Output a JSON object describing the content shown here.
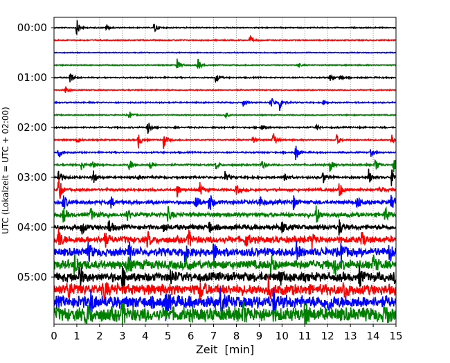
{
  "chart_data": {
    "type": "line",
    "subtype": "helicorder-seismogram",
    "xlabel": "Zeit  [min]",
    "ylabel": "UTC (Lokalzeit = UTC + 02:00)",
    "xlim": [
      0,
      15
    ],
    "xticks": [
      0,
      1,
      2,
      3,
      4,
      5,
      6,
      7,
      8,
      9,
      10,
      11,
      12,
      13,
      14,
      15
    ],
    "grid": "vertical dotted at each minute",
    "line_interval_min": 15,
    "yticks": [
      {
        "label": "00:00",
        "line": 0
      },
      {
        "label": "01:00",
        "line": 4
      },
      {
        "label": "02:00",
        "line": 8
      },
      {
        "label": "03:00",
        "line": 12
      },
      {
        "label": "04:00",
        "line": 16
      },
      {
        "label": "05:00",
        "line": 20
      }
    ],
    "colors": [
      "#000000",
      "#ff0000",
      "#0000ff",
      "#008000"
    ],
    "traces": [
      {
        "start": "00:00",
        "noise": 0.6,
        "events": [
          [
            1.0,
            12
          ],
          [
            2.3,
            6
          ],
          [
            4.4,
            9
          ]
        ]
      },
      {
        "start": "00:15",
        "noise": 0.6,
        "events": [
          [
            8.6,
            7
          ]
        ]
      },
      {
        "start": "00:30",
        "noise": 0.5,
        "events": []
      },
      {
        "start": "00:45",
        "noise": 0.6,
        "events": [
          [
            5.4,
            9
          ],
          [
            6.3,
            10
          ],
          [
            10.7,
            3
          ]
        ]
      },
      {
        "start": "01:00",
        "noise": 0.7,
        "events": [
          [
            0.7,
            10
          ],
          [
            7.1,
            8
          ],
          [
            12.1,
            5
          ],
          [
            12.5,
            6
          ]
        ]
      },
      {
        "start": "01:15",
        "noise": 0.6,
        "events": [
          [
            0.5,
            6
          ]
        ]
      },
      {
        "start": "01:30",
        "noise": 0.7,
        "events": [
          [
            8.3,
            6
          ],
          [
            9.5,
            10
          ],
          [
            9.9,
            12
          ],
          [
            11.8,
            4
          ]
        ]
      },
      {
        "start": "01:45",
        "noise": 0.6,
        "events": [
          [
            3.3,
            6
          ],
          [
            7.5,
            6
          ]
        ]
      },
      {
        "start": "02:00",
        "noise": 0.8,
        "events": [
          [
            4.1,
            12
          ],
          [
            9.1,
            6
          ],
          [
            11.5,
            4
          ]
        ]
      },
      {
        "start": "02:15",
        "noise": 0.8,
        "events": [
          [
            1.0,
            5
          ],
          [
            3.7,
            12
          ],
          [
            4.8,
            12
          ],
          [
            8.7,
            6
          ],
          [
            9.6,
            14
          ],
          [
            12.4,
            8
          ],
          [
            14.8,
            10
          ]
        ]
      },
      {
        "start": "02:30",
        "noise": 0.8,
        "events": [
          [
            0.2,
            8
          ],
          [
            10.6,
            12
          ],
          [
            13.9,
            6
          ]
        ]
      },
      {
        "start": "02:45",
        "noise": 1.0,
        "events": [
          [
            1.2,
            8
          ],
          [
            1.7,
            6
          ],
          [
            3.3,
            10
          ],
          [
            4.2,
            8
          ],
          [
            7.1,
            6
          ],
          [
            9.1,
            8
          ],
          [
            12.1,
            10
          ],
          [
            14.1,
            10
          ],
          [
            14.9,
            12
          ]
        ]
      },
      {
        "start": "03:00",
        "noise": 1.2,
        "events": [
          [
            0.2,
            14
          ],
          [
            1.7,
            12
          ],
          [
            3.7,
            4
          ],
          [
            7.5,
            8
          ],
          [
            10.1,
            10
          ],
          [
            11.8,
            10
          ],
          [
            13.8,
            12
          ],
          [
            14.8,
            12
          ]
        ]
      },
      {
        "start": "03:15",
        "noise": 1.5,
        "events": [
          [
            0.2,
            20
          ],
          [
            5.4,
            10
          ],
          [
            6.4,
            10
          ],
          [
            8.0,
            8
          ],
          [
            12.5,
            14
          ],
          [
            14.3,
            8
          ]
        ]
      },
      {
        "start": "03:30",
        "noise": 2.2,
        "events": [
          [
            0.4,
            14
          ],
          [
            2.5,
            8
          ],
          [
            6.2,
            16
          ],
          [
            6.8,
            18
          ],
          [
            9.0,
            12
          ],
          [
            10.5,
            10
          ],
          [
            13.3,
            12
          ],
          [
            14.8,
            14
          ]
        ]
      },
      {
        "start": "03:45",
        "noise": 2.5,
        "events": [
          [
            0.4,
            12
          ],
          [
            1.6,
            10
          ],
          [
            3.2,
            8
          ],
          [
            5.0,
            10
          ],
          [
            11.5,
            16
          ],
          [
            14.5,
            12
          ]
        ]
      },
      {
        "start": "04:00",
        "noise": 3.0,
        "events": [
          [
            1.2,
            12
          ],
          [
            2.4,
            12
          ],
          [
            4.8,
            8
          ],
          [
            6.8,
            10
          ],
          [
            10.0,
            10
          ],
          [
            12.5,
            12
          ]
        ]
      },
      {
        "start": "04:15",
        "noise": 4.0,
        "events": [
          [
            0.2,
            18
          ],
          [
            2.2,
            14
          ],
          [
            4.1,
            12
          ],
          [
            5.9,
            14
          ],
          [
            8.4,
            12
          ],
          [
            11.3,
            12
          ],
          [
            13.5,
            12
          ]
        ]
      },
      {
        "start": "04:30",
        "noise": 5.0,
        "events": [
          [
            1.5,
            14
          ],
          [
            3.3,
            14
          ],
          [
            5.7,
            16
          ],
          [
            7.0,
            14
          ],
          [
            10.6,
            14
          ],
          [
            12.6,
            14
          ],
          [
            14.7,
            14
          ]
        ]
      },
      {
        "start": "04:45",
        "noise": 5.5,
        "events": [
          [
            0.9,
            16
          ],
          [
            3.2,
            14
          ],
          [
            5.8,
            14
          ],
          [
            9.5,
            14
          ],
          [
            12.3,
            16
          ],
          [
            14.0,
            14
          ]
        ]
      },
      {
        "start": "05:00",
        "noise": 5.5,
        "events": [
          [
            1.1,
            18
          ],
          [
            3.0,
            16
          ],
          [
            5.1,
            12
          ],
          [
            9.9,
            12
          ],
          [
            13.4,
            14
          ],
          [
            14.9,
            14
          ]
        ]
      },
      {
        "start": "05:15",
        "noise": 6.5,
        "events": [
          [
            0.6,
            16
          ],
          [
            2.2,
            12
          ],
          [
            6.4,
            14
          ],
          [
            9.4,
            14
          ],
          [
            12.7,
            14
          ]
        ]
      },
      {
        "start": "05:30",
        "noise": 7.5,
        "events": [
          [
            1.6,
            20
          ],
          [
            4.9,
            20
          ],
          [
            7.3,
            18
          ],
          [
            9.6,
            20
          ],
          [
            12.0,
            16
          ]
        ]
      },
      {
        "start": "05:45",
        "noise": 8.5,
        "events": [
          [
            1.4,
            20
          ],
          [
            3.0,
            16
          ],
          [
            8.3,
            14
          ],
          [
            11.0,
            16
          ],
          [
            14.5,
            14
          ]
        ]
      }
    ]
  }
}
